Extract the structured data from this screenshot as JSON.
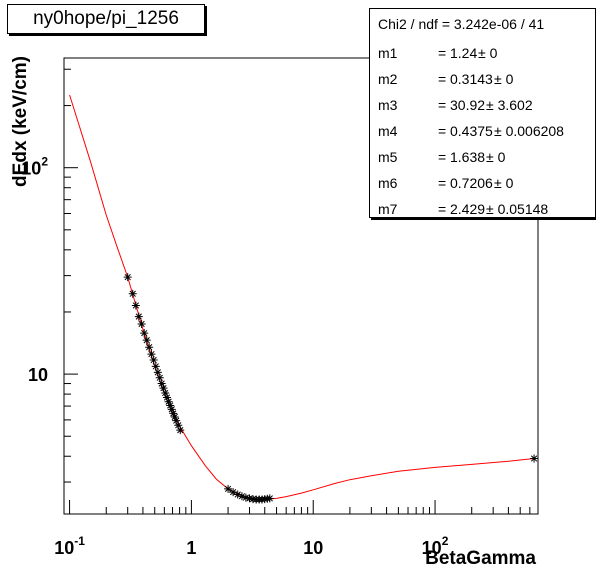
{
  "title": "ny0hope/pi_1256",
  "stats": {
    "header": "Chi2 / ndf = 3.242e-06 / 41",
    "params": [
      {
        "name": "m1",
        "value": "1.24",
        "error": "0"
      },
      {
        "name": "m2",
        "value": "0.3143",
        "error": "0"
      },
      {
        "name": "m3",
        "value": "30.92",
        "error": "3.602"
      },
      {
        "name": "m4",
        "value": "0.4375",
        "error": "0.006208"
      },
      {
        "name": "m5",
        "value": "1.638",
        "error": "0"
      },
      {
        "name": "m6",
        "value": "0.7206",
        "error": "0"
      },
      {
        "name": "m7",
        "value": "2.429",
        "error": "0.05148"
      }
    ]
  },
  "chart_data": {
    "type": "scatter",
    "title": "ny0hope/pi_1256",
    "xlabel": "BetaGamma",
    "ylabel": "dEdx (keV/cm)",
    "xscale": "log",
    "yscale": "log",
    "xlim": [
      0.09,
      700
    ],
    "ylim": [
      2.1,
      340
    ],
    "x_ticks": [
      {
        "value": 0.1,
        "base": "10",
        "exp": "-1"
      },
      {
        "value": 1,
        "base": "1",
        "exp": ""
      },
      {
        "value": 10,
        "base": "10",
        "exp": ""
      },
      {
        "value": 100,
        "base": "10",
        "exp": "2"
      }
    ],
    "y_ticks": [
      {
        "value": 10,
        "base": "10",
        "exp": ""
      },
      {
        "value": 100,
        "base": "10",
        "exp": "2"
      }
    ],
    "grid": false,
    "legend": "none",
    "colors": {
      "points": "#000000",
      "fit": "#ff0000"
    },
    "series": [
      {
        "marker": "asterisk",
        "x": [
          0.3,
          0.33,
          0.35,
          0.37,
          0.39,
          0.41,
          0.43,
          0.45,
          0.47,
          0.49,
          0.51,
          0.53,
          0.55,
          0.57,
          0.59,
          0.61,
          0.63,
          0.65,
          0.67,
          0.69,
          0.71,
          0.73,
          0.75,
          0.78,
          0.81,
          2.0,
          2.2,
          2.4,
          2.6,
          2.8,
          3.0,
          3.2,
          3.4,
          3.6,
          3.8,
          4.0,
          4.2,
          4.4,
          650
        ],
        "y": [
          29.5,
          24.5,
          21.5,
          19.0,
          17.5,
          15.8,
          14.6,
          13.5,
          12.5,
          11.7,
          10.9,
          10.2,
          9.6,
          9.0,
          8.55,
          8.1,
          7.7,
          7.35,
          7.05,
          6.75,
          6.45,
          6.2,
          5.95,
          5.65,
          5.35,
          2.78,
          2.68,
          2.61,
          2.56,
          2.52,
          2.5,
          2.48,
          2.47,
          2.47,
          2.47,
          2.48,
          2.49,
          2.5,
          3.9
        ]
      }
    ],
    "fit_curve": {
      "x": [
        0.1,
        0.12,
        0.15,
        0.2,
        0.25,
        0.3,
        0.4,
        0.5,
        0.6,
        0.7,
        0.8,
        1.0,
        1.3,
        1.6,
        2.0,
        2.5,
        3.0,
        3.5,
        4.0,
        5.0,
        6.0,
        8.0,
        10,
        15,
        20,
        30,
        50,
        100,
        200,
        400,
        650
      ],
      "y": [
        225,
        160,
        105,
        59,
        40,
        29.5,
        16.5,
        11.0,
        8.1,
        6.5,
        5.6,
        4.5,
        3.6,
        3.1,
        2.78,
        2.6,
        2.5,
        2.47,
        2.47,
        2.5,
        2.55,
        2.65,
        2.75,
        2.95,
        3.08,
        3.22,
        3.38,
        3.53,
        3.65,
        3.78,
        3.9
      ]
    }
  }
}
